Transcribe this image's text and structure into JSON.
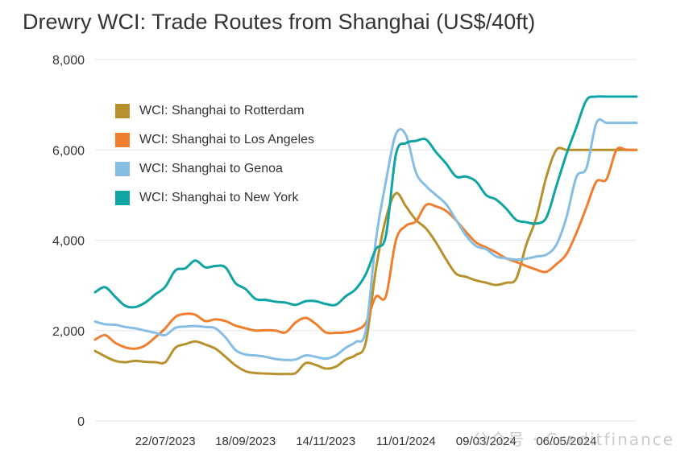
{
  "chart_data": {
    "type": "line",
    "title": "Drewry WCI: Trade Routes from Shanghai (US$/40ft)",
    "xlabel": "",
    "ylabel": "",
    "ylim": [
      0,
      8000
    ],
    "yticks": [
      "0",
      "2,000",
      "4,000",
      "6,000",
      "8,000"
    ],
    "xtick_labels": [
      "22/07/2023",
      "18/09/2023",
      "14/11/2023",
      "11/01/2024",
      "09/03/2024",
      "06/05/2024"
    ],
    "x": [
      "01/06/2023",
      "08/06/2023",
      "15/06/2023",
      "22/06/2023",
      "29/06/2023",
      "06/07/2023",
      "13/07/2023",
      "20/07/2023",
      "27/07/2023",
      "03/08/2023",
      "10/08/2023",
      "17/08/2023",
      "24/08/2023",
      "31/08/2023",
      "07/09/2023",
      "14/09/2023",
      "21/09/2023",
      "28/09/2023",
      "05/10/2023",
      "12/10/2023",
      "19/10/2023",
      "26/10/2023",
      "02/11/2023",
      "09/11/2023",
      "16/11/2023",
      "23/11/2023",
      "30/11/2023",
      "07/12/2023",
      "14/12/2023",
      "21/12/2023",
      "28/12/2023",
      "04/01/2024",
      "11/01/2024",
      "18/01/2024",
      "25/01/2024",
      "01/02/2024",
      "08/02/2024",
      "15/02/2024",
      "22/02/2024",
      "29/02/2024",
      "07/03/2024",
      "14/03/2024",
      "21/03/2024",
      "28/03/2024",
      "04/04/2024",
      "11/04/2024",
      "18/04/2024",
      "25/04/2024",
      "02/05/2024",
      "09/05/2024",
      "16/05/2024",
      "23/05/2024",
      "30/05/2024",
      "06/06/2024",
      "13/06/2024"
    ],
    "grid": true,
    "legend_position": "upper-left",
    "series": [
      {
        "name": "WCI: Shanghai to Rotterdam",
        "color": "#b8912f",
        "values": [
          1550,
          1430,
          1330,
          1300,
          1330,
          1310,
          1300,
          1300,
          1620,
          1700,
          1760,
          1690,
          1600,
          1420,
          1230,
          1100,
          1060,
          1050,
          1040,
          1040,
          1060,
          1280,
          1240,
          1160,
          1200,
          1360,
          1460,
          1740,
          3350,
          4480,
          5040,
          4750,
          4450,
          4260,
          3950,
          3580,
          3260,
          3190,
          3110,
          3060,
          3010,
          3060,
          3150,
          3900,
          4500,
          5400,
          6000,
          6000,
          6000,
          6000,
          6000,
          6000,
          6000,
          6000,
          6000
        ]
      },
      {
        "name": "WCI: Shanghai to Los Angeles",
        "color": "#ef7f2f",
        "values": [
          1800,
          1900,
          1730,
          1630,
          1600,
          1670,
          1850,
          2050,
          2300,
          2370,
          2350,
          2210,
          2250,
          2210,
          2110,
          2050,
          2000,
          2010,
          2000,
          1960,
          2180,
          2280,
          2150,
          1960,
          1950,
          1960,
          2010,
          2170,
          2750,
          2760,
          4000,
          4320,
          4420,
          4780,
          4750,
          4650,
          4440,
          4180,
          3950,
          3840,
          3730,
          3600,
          3520,
          3430,
          3350,
          3300,
          3470,
          3690,
          4160,
          4730,
          5300,
          5350,
          6000,
          6000,
          6000
        ]
      },
      {
        "name": "WCI: Shanghai to Genoa",
        "color": "#86bde3",
        "values": [
          2200,
          2140,
          2130,
          2080,
          2050,
          2000,
          1950,
          1900,
          2060,
          2090,
          2100,
          2080,
          2050,
          1850,
          1570,
          1470,
          1450,
          1420,
          1370,
          1350,
          1360,
          1450,
          1420,
          1380,
          1450,
          1620,
          1750,
          2000,
          4000,
          5300,
          6350,
          6330,
          5500,
          5200,
          5000,
          4800,
          4450,
          4100,
          3870,
          3800,
          3640,
          3600,
          3570,
          3590,
          3640,
          3680,
          3900,
          4500,
          5400,
          5600,
          6600,
          6600,
          6600,
          6600,
          6600
        ]
      },
      {
        "name": "WCI: Shanghai to New York",
        "color": "#0fa3a3",
        "values": [
          2850,
          2960,
          2750,
          2550,
          2520,
          2620,
          2800,
          2970,
          3330,
          3380,
          3550,
          3400,
          3430,
          3400,
          3050,
          2920,
          2700,
          2680,
          2640,
          2620,
          2570,
          2650,
          2650,
          2590,
          2570,
          2760,
          2920,
          3250,
          3800,
          4100,
          5900,
          6150,
          6200,
          6230,
          5950,
          5700,
          5410,
          5410,
          5300,
          5000,
          4900,
          4700,
          4450,
          4400,
          4370,
          4500,
          5200,
          5900,
          6500,
          7100,
          7180,
          7180,
          7180,
          7180,
          7180
        ]
      }
    ]
  },
  "watermark": "公众号 · Creditfinance"
}
